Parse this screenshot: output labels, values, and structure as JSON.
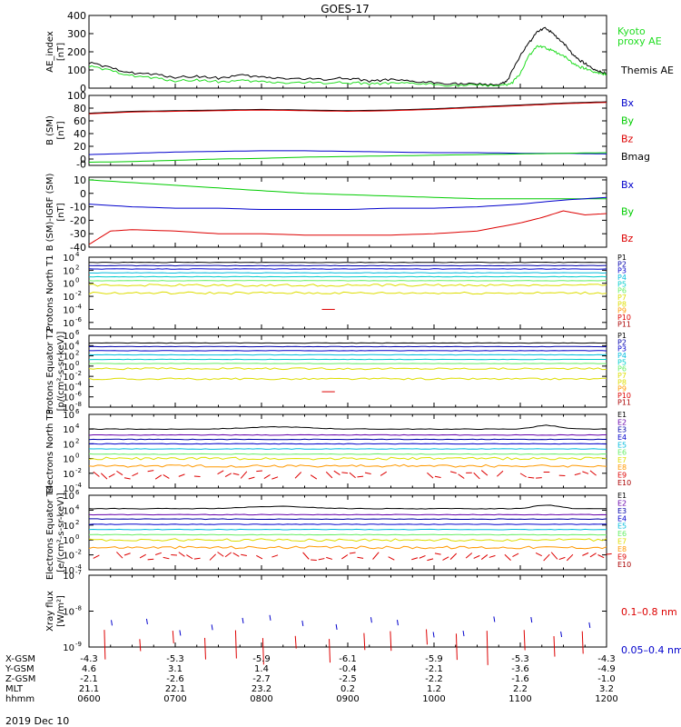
{
  "title": "GOES-17",
  "date_label": "2019 Dec 10",
  "colors": {
    "black": "#000000",
    "green": "#00cc00",
    "kyoto": "#22dd22",
    "blue": "#0000cc",
    "red": "#dd0000",
    "cyan": "#00bbdd",
    "yellow": "#dddd00",
    "orange": "#ff9900",
    "lightgreen": "#66ee66",
    "teal": "#00cccc",
    "darkred": "#aa0000",
    "purple": "#6600aa",
    "navy": "#0000aa"
  },
  "chart_data": [
    {
      "type": "line",
      "ylabel": "AE_index [nT]",
      "ylim": [
        0,
        400
      ],
      "yticks": [
        "0",
        "100",
        "200",
        "300",
        "400"
      ],
      "legend": [
        {
          "text": "Kyoto",
          "color": "kyoto"
        },
        {
          "text": "proxy AE",
          "color": "kyoto"
        },
        {
          "text": "Themis AE",
          "color": "black"
        }
      ],
      "series": [
        {
          "name": "Themis AE",
          "color": "black",
          "x": [
            6.0,
            6.25,
            6.5,
            6.75,
            7.0,
            7.25,
            7.5,
            7.75,
            8.0,
            8.25,
            8.5,
            8.75,
            9.0,
            9.25,
            9.5,
            9.75,
            10.0,
            10.25,
            10.5,
            10.75,
            10.85,
            11.0,
            11.1,
            11.2,
            11.3,
            11.4,
            11.5,
            11.6,
            11.7,
            11.8,
            11.9,
            12.0
          ],
          "y": [
            140,
            110,
            85,
            75,
            60,
            65,
            55,
            70,
            60,
            55,
            50,
            50,
            55,
            40,
            45,
            35,
            30,
            25,
            20,
            20,
            40,
            180,
            250,
            310,
            330,
            290,
            250,
            190,
            150,
            120,
            95,
            80
          ]
        },
        {
          "name": "Kyoto proxy AE",
          "color": "kyoto",
          "x": [
            6.0,
            6.25,
            6.5,
            6.75,
            7.0,
            7.25,
            7.5,
            7.75,
            8.0,
            8.25,
            8.5,
            8.75,
            9.0,
            9.25,
            9.5,
            9.75,
            10.0,
            10.25,
            10.5,
            10.75,
            10.9,
            11.0,
            11.1,
            11.2,
            11.3,
            11.4,
            11.5,
            11.6,
            11.7,
            11.8,
            11.9,
            12.0
          ],
          "y": [
            120,
            95,
            70,
            55,
            40,
            45,
            35,
            40,
            35,
            30,
            30,
            30,
            30,
            25,
            25,
            25,
            20,
            15,
            15,
            15,
            25,
            80,
            180,
            230,
            220,
            200,
            180,
            140,
            115,
            100,
            85,
            75
          ]
        }
      ]
    },
    {
      "type": "line",
      "ylabel": "B (SM) [nT]",
      "ylim": [
        -10,
        100
      ],
      "yticks": [
        "0",
        "20",
        "40",
        "60",
        "80",
        "100"
      ],
      "yticks_neg": [
        "-0"
      ],
      "legend": [
        {
          "text": "Bx",
          "color": "blue"
        },
        {
          "text": "By",
          "color": "green"
        },
        {
          "text": "Bz",
          "color": "red"
        },
        {
          "text": "Bmag",
          "color": "black"
        }
      ],
      "series": [
        {
          "name": "Bmag",
          "color": "black",
          "x": [
            6.0,
            6.5,
            7.0,
            7.5,
            8.0,
            8.5,
            9.0,
            9.5,
            10.0,
            10.5,
            11.0,
            11.5,
            12.0
          ],
          "y": [
            72,
            75,
            76,
            77,
            78,
            77,
            76,
            77,
            79,
            82,
            85,
            88,
            90
          ]
        },
        {
          "name": "Bz",
          "color": "red",
          "x": [
            6.0,
            6.5,
            7.0,
            7.5,
            8.0,
            8.5,
            9.0,
            9.5,
            10.0,
            10.5,
            11.0,
            11.5,
            12.0
          ],
          "y": [
            71,
            74,
            75,
            76,
            77,
            76,
            75,
            76,
            78,
            81,
            84,
            87,
            89
          ]
        },
        {
          "name": "Bx",
          "color": "blue",
          "x": [
            6.0,
            6.5,
            7.0,
            7.5,
            8.0,
            8.5,
            9.0,
            9.5,
            10.0,
            10.5,
            11.0,
            11.5,
            12.0
          ],
          "y": [
            7,
            9,
            11,
            12,
            13,
            13,
            12,
            11,
            10,
            10,
            9,
            9,
            8
          ]
        },
        {
          "name": "By",
          "color": "green",
          "x": [
            6.0,
            6.5,
            7.0,
            7.5,
            8.0,
            8.5,
            9.0,
            9.5,
            10.0,
            10.5,
            11.0,
            11.5,
            12.0
          ],
          "y": [
            -5,
            -4,
            -2,
            0,
            1,
            3,
            4,
            5,
            6,
            7,
            8,
            9,
            10
          ]
        }
      ]
    },
    {
      "type": "line",
      "ylabel": "B (SM)-IGRF (SM) [nT]",
      "ylim": [
        -40,
        12
      ],
      "yticks": [
        "-40",
        "-30",
        "-20",
        "-10",
        "0",
        "10"
      ],
      "legend": [
        {
          "text": "Bx",
          "color": "blue"
        },
        {
          "text": "By",
          "color": "green"
        },
        {
          "text": "Bz",
          "color": "red"
        }
      ],
      "series": [
        {
          "name": "By",
          "color": "green",
          "x": [
            6.0,
            6.5,
            7.0,
            7.5,
            8.0,
            8.5,
            9.0,
            9.5,
            10.0,
            10.5,
            11.0,
            11.5,
            12.0
          ],
          "y": [
            10,
            8,
            6,
            4,
            2,
            0,
            -1,
            -2,
            -3,
            -4,
            -4,
            -4,
            -4
          ]
        },
        {
          "name": "Bx",
          "color": "blue",
          "x": [
            6.0,
            6.5,
            7.0,
            7.5,
            8.0,
            8.5,
            9.0,
            9.5,
            10.0,
            10.5,
            11.0,
            11.5,
            12.0
          ],
          "y": [
            -8,
            -10,
            -11,
            -11,
            -12,
            -12,
            -12,
            -11,
            -11,
            -10,
            -8,
            -5,
            -3
          ]
        },
        {
          "name": "Bz",
          "color": "red",
          "x": [
            6.0,
            6.25,
            6.5,
            7.0,
            7.5,
            8.0,
            8.5,
            9.0,
            9.5,
            10.0,
            10.5,
            11.0,
            11.25,
            11.5,
            11.75,
            12.0
          ],
          "y": [
            -38,
            -28,
            -27,
            -28,
            -30,
            -30,
            -31,
            -31,
            -31,
            -30,
            -28,
            -22,
            -18,
            -13,
            -16,
            -15
          ]
        }
      ]
    },
    {
      "type": "line",
      "scale": "log",
      "ylabel": "Protons North T1",
      "ylim_exp": [
        -7,
        4
      ],
      "yticks": [
        "10",
        "10",
        "10",
        "10",
        "10",
        "10"
      ],
      "yticks_exp": [
        "4",
        "2",
        "0",
        "-2",
        "-4",
        "-6"
      ],
      "legend": [
        {
          "text": "P1",
          "color": "black"
        },
        {
          "text": "P2",
          "color": "navy"
        },
        {
          "text": "P3",
          "color": "blue"
        },
        {
          "text": "P4",
          "color": "cyan"
        },
        {
          "text": "P5",
          "color": "teal"
        },
        {
          "text": "P6",
          "color": "lightgreen"
        },
        {
          "text": "P7",
          "color": "yellow"
        },
        {
          "text": "P8",
          "color": "yellow"
        },
        {
          "text": "P9",
          "color": "orange"
        },
        {
          "text": "P10",
          "color": "red"
        },
        {
          "text": "P11",
          "color": "darkred"
        }
      ],
      "levels_exp": [
        3.2,
        2.7,
        2.2,
        1.6,
        1.0,
        0.4,
        -0.3,
        -1.5
      ],
      "level_colors": [
        "black",
        "navy",
        "blue",
        "cyan",
        "teal",
        "lightgreen",
        "yellow",
        "yellow"
      ]
    },
    {
      "type": "line",
      "scale": "log",
      "ylabel": "Protons Equator T2 [p/(cm²-s-sr-keV)]",
      "ylim_exp": [
        -8,
        6
      ],
      "yticks": [
        "10",
        "10",
        "10",
        "10",
        "10",
        "10",
        "10",
        "10"
      ],
      "yticks_exp": [
        "6",
        "4",
        "2",
        "0",
        "-2",
        "-4",
        "-6",
        "-8"
      ],
      "legend": [
        {
          "text": "P1",
          "color": "black"
        },
        {
          "text": "P2",
          "color": "navy"
        },
        {
          "text": "P3",
          "color": "blue"
        },
        {
          "text": "P4",
          "color": "cyan"
        },
        {
          "text": "P5",
          "color": "teal"
        },
        {
          "text": "P6",
          "color": "lightgreen"
        },
        {
          "text": "P7",
          "color": "yellow"
        },
        {
          "text": "P8",
          "color": "yellow"
        },
        {
          "text": "P9",
          "color": "orange"
        },
        {
          "text": "P10",
          "color": "red"
        },
        {
          "text": "P11",
          "color": "darkred"
        }
      ],
      "levels_exp": [
        4.5,
        3.8,
        3.0,
        2.2,
        1.3,
        0.5,
        -0.5,
        -2.5
      ],
      "level_colors": [
        "black",
        "navy",
        "blue",
        "cyan",
        "teal",
        "lightgreen",
        "yellow",
        "yellow"
      ]
    },
    {
      "type": "line",
      "scale": "log",
      "ylabel": "Electrons North T3",
      "ylim_exp": [
        -4,
        6
      ],
      "yticks": [
        "10",
        "10",
        "10",
        "10",
        "10",
        "10"
      ],
      "yticks_exp": [
        "6",
        "4",
        "2",
        "0",
        "-2",
        "-4"
      ],
      "legend": [
        {
          "text": "E1",
          "color": "black"
        },
        {
          "text": "E2",
          "color": "purple"
        },
        {
          "text": "E3",
          "color": "navy"
        },
        {
          "text": "E4",
          "color": "blue"
        },
        {
          "text": "E5",
          "color": "cyan"
        },
        {
          "text": "E6",
          "color": "lightgreen"
        },
        {
          "text": "E7",
          "color": "yellow"
        },
        {
          "text": "E8",
          "color": "orange"
        },
        {
          "text": "E9",
          "color": "red"
        },
        {
          "text": "E10",
          "color": "darkred"
        }
      ],
      "levels_exp": [
        4.0,
        3.2,
        2.6,
        2.0,
        1.3,
        0.6,
        0.0,
        -1.0
      ],
      "level_colors": [
        "black",
        "purple",
        "navy",
        "blue",
        "cyan",
        "lightgreen",
        "yellow",
        "orange"
      ]
    },
    {
      "type": "line",
      "scale": "log",
      "ylabel": "Electrons Equator T4 [e/(cm²-s-sr-keV)]",
      "ylim_exp": [
        -4,
        6
      ],
      "yticks": [
        "10",
        "10",
        "10",
        "10",
        "10",
        "10"
      ],
      "yticks_exp": [
        "6",
        "4",
        "2",
        "0",
        "-2",
        "-4"
      ],
      "legend": [
        {
          "text": "E1",
          "color": "black"
        },
        {
          "text": "E2",
          "color": "purple"
        },
        {
          "text": "E3",
          "color": "navy"
        },
        {
          "text": "E4",
          "color": "blue"
        },
        {
          "text": "E5",
          "color": "cyan"
        },
        {
          "text": "E6",
          "color": "lightgreen"
        },
        {
          "text": "E7",
          "color": "yellow"
        },
        {
          "text": "E8",
          "color": "orange"
        },
        {
          "text": "E9",
          "color": "red"
        },
        {
          "text": "E10",
          "color": "darkred"
        }
      ],
      "levels_exp": [
        4.2,
        3.4,
        2.8,
        2.1,
        1.4,
        0.7,
        0.0,
        -1.0
      ],
      "level_colors": [
        "black",
        "purple",
        "navy",
        "blue",
        "cyan",
        "lightgreen",
        "yellow",
        "orange"
      ]
    },
    {
      "type": "scatter",
      "scale": "log",
      "ylabel": "Xray flux [W/m²]",
      "ylim_exp": [
        -9,
        -7
      ],
      "yticks": [
        "10",
        "10",
        "10"
      ],
      "yticks_exp": [
        "-7",
        "-8",
        "-9"
      ],
      "legend": [
        {
          "text": "0.1–0.8 nm",
          "color": "red"
        },
        {
          "text": "0.05–0.4 nm",
          "color": "blue"
        }
      ]
    }
  ],
  "xaxis": {
    "row_labels": [
      "X-GSM",
      "Y-GSM",
      "Z-GSM",
      "MLT",
      "hhmm"
    ],
    "columns": [
      {
        "x": 6,
        "vals": [
          "-4.3",
          "4.6",
          "-2.1",
          "21.1",
          "0600"
        ]
      },
      {
        "x": 7,
        "vals": [
          "-5.3",
          "3.1",
          "-2.6",
          "22.1",
          "0700"
        ]
      },
      {
        "x": 8,
        "vals": [
          "-5.9",
          "1.4",
          "-2.7",
          "23.2",
          "0800"
        ]
      },
      {
        "x": 9,
        "vals": [
          "-6.1",
          "-0.4",
          "-2.5",
          "0.2",
          "0900"
        ]
      },
      {
        "x": 10,
        "vals": [
          "-5.9",
          "-2.1",
          "-2.2",
          "1.2",
          "1000"
        ]
      },
      {
        "x": 11,
        "vals": [
          "-5.3",
          "-3.6",
          "-1.6",
          "2.2",
          "1100"
        ]
      },
      {
        "x": 12,
        "vals": [
          "-4.3",
          "-4.9",
          "-1.0",
          "3.2",
          "1200"
        ]
      }
    ]
  }
}
